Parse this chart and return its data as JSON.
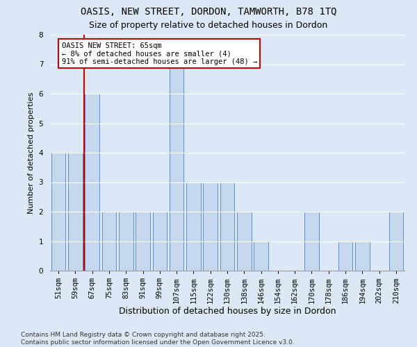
{
  "title_line1": "OASIS, NEW STREET, DORDON, TAMWORTH, B78 1TQ",
  "title_line2": "Size of property relative to detached houses in Dordon",
  "xlabel": "Distribution of detached houses by size in Dordon",
  "ylabel": "Number of detached properties",
  "categories": [
    "51sqm",
    "59sqm",
    "67sqm",
    "75sqm",
    "83sqm",
    "91sqm",
    "99sqm",
    "107sqm",
    "115sqm",
    "122sqm",
    "130sqm",
    "138sqm",
    "146sqm",
    "154sqm",
    "162sqm",
    "170sqm",
    "178sqm",
    "186sqm",
    "194sqm",
    "202sqm",
    "210sqm"
  ],
  "values": [
    4,
    4,
    6,
    2,
    2,
    2,
    2,
    7,
    3,
    3,
    3,
    2,
    1,
    0,
    0,
    2,
    0,
    1,
    1,
    0,
    2
  ],
  "bar_color": "#c5d8ed",
  "bar_edge_color": "#5b8fc9",
  "vline_color": "#cc0000",
  "vline_x_index": 1.5,
  "annotation_text": "OASIS NEW STREET: 65sqm\n← 8% of detached houses are smaller (4)\n91% of semi-detached houses are larger (48) →",
  "annotation_box_facecolor": "white",
  "annotation_box_edgecolor": "#cc0000",
  "ylim": [
    0,
    8
  ],
  "yticks": [
    0,
    1,
    2,
    3,
    4,
    5,
    6,
    7,
    8
  ],
  "footer": "Contains HM Land Registry data © Crown copyright and database right 2025.\nContains public sector information licensed under the Open Government Licence v3.0.",
  "bg_color": "#dce8f5",
  "plot_bg_color": "#dce8f5",
  "grid_color": "white",
  "title_fontsize": 10,
  "subtitle_fontsize": 9,
  "xlabel_fontsize": 9,
  "ylabel_fontsize": 8,
  "tick_fontsize": 7.5,
  "annotation_fontsize": 7.5,
  "footer_fontsize": 6.5
}
